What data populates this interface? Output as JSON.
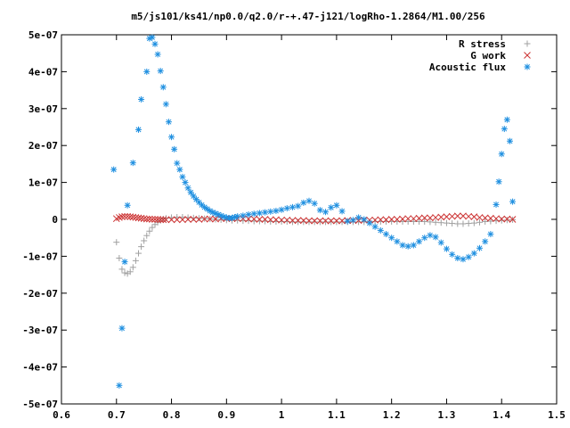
{
  "chart_data": {
    "type": "scatter",
    "title": "m5/js101/ks41/np0.0/q2.0/r-+.47-j121/logRho-1.2864/M1.00/256",
    "xlabel": "",
    "ylabel": "",
    "xlim": [
      0.6,
      1.5
    ],
    "ylim": [
      -5e-07,
      5e-07
    ],
    "x_ticks": [
      0.6,
      0.7,
      0.8,
      0.9,
      1.0,
      1.1,
      1.2,
      1.3,
      1.4,
      1.5
    ],
    "x_tick_labels": [
      "0.6",
      "0.7",
      "0.8",
      "0.9",
      "1",
      "1.1",
      "1.2",
      "1.3",
      "1.4",
      "1.5"
    ],
    "y_ticks": [
      -5e-07,
      -4e-07,
      -3e-07,
      -2e-07,
      -1e-07,
      0,
      1e-07,
      2e-07,
      3e-07,
      4e-07,
      5e-07
    ],
    "y_tick_labels": [
      "-5e-07",
      "-4e-07",
      "-3e-07",
      "-2e-07",
      "-1e-07",
      "0",
      "1e-07",
      "2e-07",
      "3e-07",
      "4e-07",
      "5e-07"
    ],
    "legend_position": "top-right",
    "grid": false,
    "series": [
      {
        "name": "R stress",
        "marker": "plus",
        "color": "#a0a0a0",
        "x": [
          0.7,
          0.705,
          0.71,
          0.715,
          0.72,
          0.725,
          0.73,
          0.735,
          0.74,
          0.745,
          0.75,
          0.755,
          0.76,
          0.765,
          0.77,
          0.775,
          0.78,
          0.785,
          0.79,
          0.8,
          0.81,
          0.82,
          0.83,
          0.84,
          0.85,
          0.86,
          0.87,
          0.88,
          0.89,
          0.9,
          0.91,
          0.92,
          0.93,
          0.94,
          0.95,
          0.96,
          0.97,
          0.98,
          0.99,
          1.0,
          1.01,
          1.02,
          1.03,
          1.04,
          1.05,
          1.06,
          1.07,
          1.08,
          1.09,
          1.1,
          1.11,
          1.12,
          1.13,
          1.14,
          1.15,
          1.16,
          1.17,
          1.18,
          1.19,
          1.2,
          1.21,
          1.22,
          1.23,
          1.24,
          1.25,
          1.26,
          1.27,
          1.28,
          1.29,
          1.3,
          1.31,
          1.32,
          1.33,
          1.34,
          1.35,
          1.36,
          1.37,
          1.38,
          1.39,
          1.4,
          1.41,
          1.42
        ],
        "y": [
          -6.2e-08,
          -1.05e-07,
          -1.35e-07,
          -1.45e-07,
          -1.47e-07,
          -1.42e-07,
          -1.3e-07,
          -1.12e-07,
          -9.2e-08,
          -7.4e-08,
          -5.8e-08,
          -4.4e-08,
          -3.2e-08,
          -2.2e-08,
          -1.4e-08,
          -8e-09,
          -3e-09,
          1e-09,
          3e-09,
          5e-09,
          6e-09,
          6e-09,
          5e-09,
          4e-09,
          3e-09,
          2e-09,
          1e-09,
          0,
          -1e-09,
          -2e-09,
          -3e-09,
          -3e-09,
          -4e-09,
          -4e-09,
          -5e-09,
          -5e-09,
          -5e-09,
          -6e-09,
          -6e-09,
          -6e-09,
          -6e-09,
          -7e-09,
          -7e-09,
          -7e-09,
          -7e-09,
          -7e-09,
          -7e-09,
          -7e-09,
          -7e-09,
          -7e-09,
          -7e-09,
          -7e-09,
          -7e-09,
          -7e-09,
          -7e-09,
          -7e-09,
          -6e-09,
          -6e-09,
          -6e-09,
          -6e-09,
          -6e-09,
          -6e-09,
          -6e-09,
          -6e-09,
          -6e-09,
          -6e-09,
          -7e-09,
          -8e-09,
          -9e-09,
          -1e-08,
          -1.1e-08,
          -1.2e-08,
          -1.2e-08,
          -1.1e-08,
          -1e-08,
          -8e-09,
          -6e-09,
          -5e-09,
          -4e-09,
          -3e-09,
          -2e-09,
          -1e-09
        ]
      },
      {
        "name": "G work",
        "marker": "cross",
        "color": "#cc3333",
        "x": [
          0.7,
          0.705,
          0.71,
          0.715,
          0.72,
          0.725,
          0.73,
          0.735,
          0.74,
          0.745,
          0.75,
          0.755,
          0.76,
          0.765,
          0.77,
          0.775,
          0.78,
          0.785,
          0.79,
          0.8,
          0.81,
          0.82,
          0.83,
          0.84,
          0.85,
          0.86,
          0.87,
          0.88,
          0.89,
          0.9,
          0.91,
          0.92,
          0.93,
          0.94,
          0.95,
          0.96,
          0.97,
          0.98,
          0.99,
          1.0,
          1.01,
          1.02,
          1.03,
          1.04,
          1.05,
          1.06,
          1.07,
          1.08,
          1.09,
          1.1,
          1.11,
          1.12,
          1.13,
          1.14,
          1.15,
          1.16,
          1.17,
          1.18,
          1.19,
          1.2,
          1.21,
          1.22,
          1.23,
          1.24,
          1.25,
          1.26,
          1.27,
          1.28,
          1.29,
          1.3,
          1.31,
          1.32,
          1.33,
          1.34,
          1.35,
          1.36,
          1.37,
          1.38,
          1.39,
          1.4,
          1.41,
          1.42
        ],
        "y": [
          2e-09,
          5e-09,
          7e-09,
          8e-09,
          8e-09,
          7e-09,
          6e-09,
          5e-09,
          4e-09,
          3e-09,
          2e-09,
          1e-09,
          1e-09,
          0,
          0,
          0,
          -1e-09,
          -1e-09,
          -1e-09,
          -1e-09,
          -1e-09,
          -1e-09,
          0,
          0,
          0,
          1e-09,
          1e-09,
          1e-09,
          2e-09,
          2e-09,
          2e-09,
          2e-09,
          2e-09,
          1e-09,
          1e-09,
          0,
          0,
          -1e-09,
          -1e-09,
          -2e-09,
          -2e-09,
          -3e-09,
          -3e-09,
          -3e-09,
          -4e-09,
          -4e-09,
          -4e-09,
          -4e-09,
          -4e-09,
          -4e-09,
          -4e-09,
          -3e-09,
          -3e-09,
          -3e-09,
          -2e-09,
          -2e-09,
          -2e-09,
          -1e-09,
          -1e-09,
          0,
          0,
          1e-09,
          2e-09,
          2e-09,
          3e-09,
          4e-09,
          4e-09,
          5e-09,
          6e-09,
          7e-09,
          8e-09,
          9e-09,
          9e-09,
          8e-09,
          7e-09,
          5e-09,
          4e-09,
          3e-09,
          2e-09,
          1e-09,
          1e-09,
          0
        ]
      },
      {
        "name": "Acoustic flux",
        "marker": "star",
        "color": "#1e8fe0",
        "x": [
          0.695,
          0.705,
          0.71,
          0.715,
          0.72,
          0.73,
          0.74,
          0.745,
          0.755,
          0.76,
          0.765,
          0.77,
          0.775,
          0.78,
          0.785,
          0.79,
          0.795,
          0.8,
          0.805,
          0.81,
          0.815,
          0.82,
          0.825,
          0.83,
          0.835,
          0.84,
          0.845,
          0.85,
          0.855,
          0.86,
          0.865,
          0.87,
          0.875,
          0.88,
          0.885,
          0.89,
          0.895,
          0.9,
          0.905,
          0.91,
          0.915,
          0.92,
          0.93,
          0.94,
          0.95,
          0.96,
          0.97,
          0.98,
          0.99,
          1.0,
          1.01,
          1.02,
          1.03,
          1.04,
          1.05,
          1.06,
          1.07,
          1.08,
          1.09,
          1.1,
          1.11,
          1.12,
          1.13,
          1.14,
          1.15,
          1.16,
          1.17,
          1.18,
          1.19,
          1.2,
          1.21,
          1.22,
          1.23,
          1.24,
          1.25,
          1.26,
          1.27,
          1.28,
          1.29,
          1.3,
          1.31,
          1.32,
          1.33,
          1.34,
          1.35,
          1.36,
          1.37,
          1.38,
          1.39,
          1.395,
          1.4,
          1.405,
          1.41,
          1.415,
          1.42
        ],
        "y": [
          1.35e-07,
          -4.5e-07,
          -2.95e-07,
          -1.15e-07,
          3.8e-08,
          1.53e-07,
          2.43e-07,
          3.25e-07,
          4e-07,
          4.9e-07,
          4.93e-07,
          4.75e-07,
          4.47e-07,
          4.02e-07,
          3.58e-07,
          3.12e-07,
          2.64e-07,
          2.23e-07,
          1.9e-07,
          1.52e-07,
          1.35e-07,
          1.15e-07,
          1e-07,
          8.5e-08,
          7.3e-08,
          6.3e-08,
          5.4e-08,
          4.6e-08,
          3.9e-08,
          3.3e-08,
          2.8e-08,
          2.3e-08,
          1.9e-08,
          1.6e-08,
          1.3e-08,
          1e-08,
          7e-09,
          5e-09,
          3e-09,
          4e-09,
          6e-09,
          8e-09,
          1e-08,
          1.3e-08,
          1.5e-08,
          1.7e-08,
          1.9e-08,
          2.1e-08,
          2.3e-08,
          2.6e-08,
          3e-08,
          3.3e-08,
          3.6e-08,
          4.5e-08,
          5e-08,
          4.3e-08,
          2.5e-08,
          2e-08,
          3.2e-08,
          3.8e-08,
          2.2e-08,
          -5e-09,
          -2e-09,
          5e-09,
          0,
          -1e-08,
          -2e-08,
          -3e-08,
          -4e-08,
          -5e-08,
          -6e-08,
          -7e-08,
          -7.3e-08,
          -7e-08,
          -6e-08,
          -5e-08,
          -4.3e-08,
          -4.8e-08,
          -6.3e-08,
          -8e-08,
          -9.5e-08,
          -1.05e-07,
          -1.08e-07,
          -1.02e-07,
          -9.2e-08,
          -7.8e-08,
          -6e-08,
          -4e-08,
          4e-08,
          1.02e-07,
          1.77e-07,
          2.45e-07,
          2.7e-07,
          2.12e-07,
          4.8e-08
        ]
      }
    ]
  }
}
